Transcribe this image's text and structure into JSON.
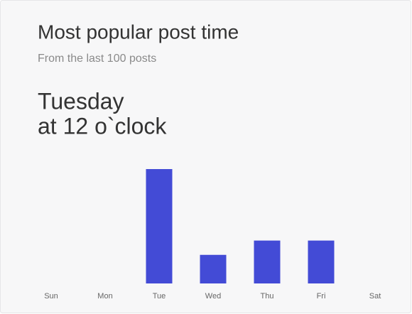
{
  "chart_data": {
    "type": "bar",
    "title": "Most popular post time",
    "subtitle": "From the last 100 posts",
    "headline": [
      "Tuesday",
      "at 12 o`clock"
    ],
    "categories": [
      "Sun",
      "Mon",
      "Tue",
      "Wed",
      "Thu",
      "Fri",
      "Sat"
    ],
    "values": [
      0,
      0,
      8,
      2,
      3,
      3,
      0
    ],
    "color": "#434bd6"
  }
}
